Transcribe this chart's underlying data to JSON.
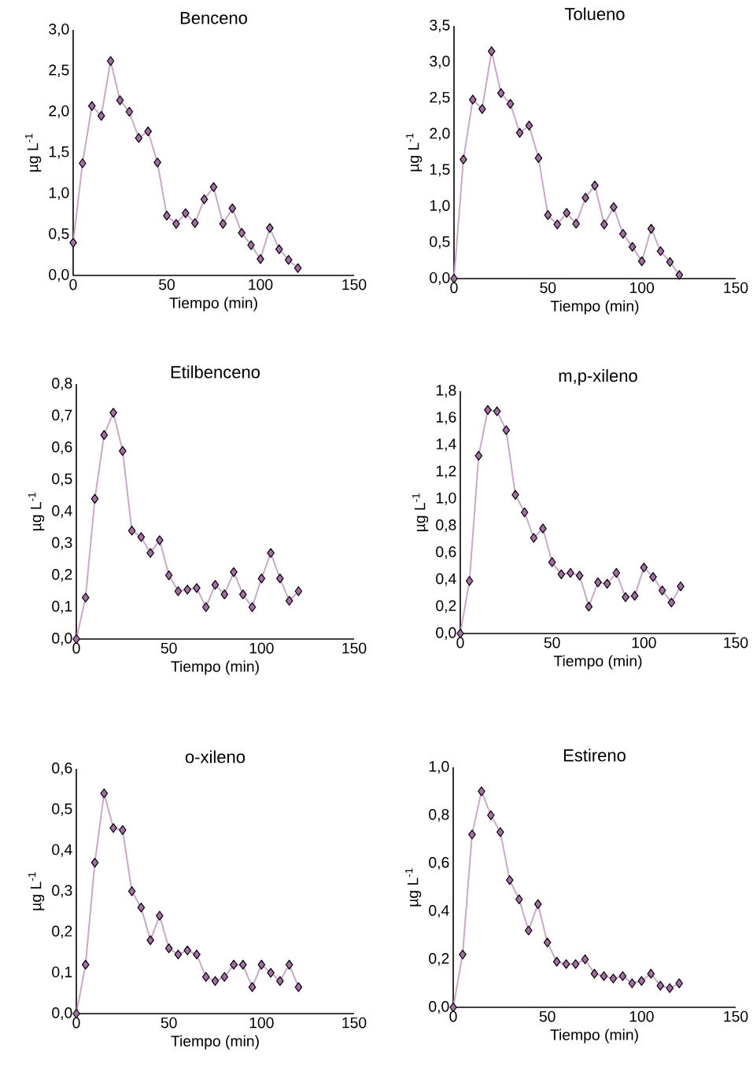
{
  "chart_data": [
    {
      "type": "line",
      "title": "Benceno",
      "xlabel": "Tiempo (min)",
      "ylabel": "µg L$^{-1}$",
      "marker": "diamond",
      "x": [
        0,
        5,
        10,
        15,
        20,
        25,
        30,
        35,
        40,
        45,
        50,
        55,
        60,
        65,
        70,
        75,
        80,
        85,
        90,
        95,
        100,
        105,
        110,
        115,
        120
      ],
      "series": [
        {
          "color": "#a56ea5",
          "values": [
            0.4,
            1.37,
            2.07,
            1.95,
            2.62,
            2.14,
            2.0,
            1.68,
            1.76,
            1.38,
            0.73,
            0.63,
            0.76,
            0.64,
            0.93,
            1.08,
            0.63,
            0.82,
            0.52,
            0.37,
            0.2,
            0.58,
            0.32,
            0.19,
            0.09
          ]
        }
      ],
      "xlim": [
        0,
        150
      ],
      "xticks": [
        0,
        50,
        100,
        150
      ],
      "ylim": [
        0,
        3
      ],
      "yticks": [
        {
          "value": 0,
          "label": "0,0"
        },
        {
          "value": 0.5,
          "label": "0,5"
        },
        {
          "value": 1,
          "label": "1,0"
        },
        {
          "value": 1.5,
          "label": "1,5"
        },
        {
          "value": 2,
          "label": "2,0"
        },
        {
          "value": 2.5,
          "label": "2,5"
        },
        {
          "value": 3,
          "label": "3,0"
        }
      ]
    },
    {
      "type": "line",
      "title": "Tolueno",
      "xlabel": "Tiempo (min)",
      "ylabel": "µg L$^{-1}$",
      "marker": "diamond",
      "x": [
        0,
        5,
        10,
        15,
        20,
        25,
        30,
        35,
        40,
        45,
        50,
        55,
        60,
        65,
        70,
        75,
        80,
        85,
        90,
        95,
        100,
        105,
        110,
        115,
        120
      ],
      "series": [
        {
          "color": "#a56ea5",
          "values": [
            0,
            1.65,
            2.48,
            2.35,
            3.15,
            2.57,
            2.42,
            2.02,
            2.12,
            1.67,
            0.88,
            0.75,
            0.91,
            0.76,
            1.12,
            1.29,
            0.75,
            0.99,
            0.62,
            0.44,
            0.24,
            0.69,
            0.38,
            0.23,
            0.05
          ]
        }
      ],
      "xlim": [
        0,
        150
      ],
      "xticks": [
        0,
        50,
        100,
        150
      ],
      "ylim": [
        0,
        3.5
      ],
      "yticks": [
        {
          "value": 0,
          "label": "0,0"
        },
        {
          "value": 0.5,
          "label": "0,5"
        },
        {
          "value": 1,
          "label": "1,0"
        },
        {
          "value": 1.5,
          "label": "1,5"
        },
        {
          "value": 2,
          "label": "2,0"
        },
        {
          "value": 2.5,
          "label": "2,5"
        },
        {
          "value": 3,
          "label": "3,0"
        },
        {
          "value": 3.5,
          "label": "3,5"
        }
      ]
    },
    {
      "type": "line",
      "title": "Etilbenceno",
      "xlabel": "Tiempo (min)",
      "ylabel": "µg L$^{-1}$",
      "marker": "diamond",
      "x": [
        0,
        5,
        10,
        15,
        20,
        25,
        30,
        35,
        40,
        45,
        50,
        55,
        60,
        65,
        70,
        75,
        80,
        85,
        90,
        95,
        100,
        105,
        110,
        115,
        120
      ],
      "series": [
        {
          "color": "#a56ea5",
          "values": [
            0,
            0.13,
            0.44,
            0.64,
            0.71,
            0.59,
            0.34,
            0.32,
            0.27,
            0.31,
            0.2,
            0.15,
            0.155,
            0.16,
            0.1,
            0.17,
            0.14,
            0.21,
            0.14,
            0.1,
            0.19,
            0.27,
            0.19,
            0.12,
            0.15
          ]
        }
      ],
      "xlim": [
        0,
        150
      ],
      "xticks": [
        0,
        50,
        100,
        150
      ],
      "ylim": [
        0,
        0.8
      ],
      "yticks": [
        {
          "value": 0,
          "label": "0,0"
        },
        {
          "value": 0.1,
          "label": "0,1"
        },
        {
          "value": 0.2,
          "label": "0,2"
        },
        {
          "value": 0.3,
          "label": "0,3"
        },
        {
          "value": 0.4,
          "label": "0,4"
        },
        {
          "value": 0.5,
          "label": "0,5"
        },
        {
          "value": 0.6,
          "label": "0,6"
        },
        {
          "value": 0.7,
          "label": "0,7"
        },
        {
          "value": 0.8,
          "label": "0,8"
        }
      ]
    },
    {
      "type": "line",
      "title": "m,p-xileno",
      "xlabel": "Tiempo (min)",
      "ylabel": "µg L$^{-1}$",
      "marker": "diamond",
      "x": [
        0,
        5,
        10,
        15,
        20,
        25,
        30,
        35,
        40,
        45,
        50,
        55,
        60,
        65,
        70,
        75,
        80,
        85,
        90,
        95,
        100,
        105,
        110,
        115,
        120
      ],
      "series": [
        {
          "color": "#a56ea5",
          "values": [
            0,
            0.39,
            1.32,
            1.66,
            1.65,
            1.51,
            1.03,
            0.9,
            0.71,
            0.78,
            0.53,
            0.44,
            0.45,
            0.43,
            0.2,
            0.38,
            0.37,
            0.45,
            0.27,
            0.28,
            0.49,
            0.42,
            0.32,
            0.23,
            0.35
          ]
        }
      ],
      "xlim": [
        0,
        150
      ],
      "xticks": [
        0,
        50,
        100,
        150
      ],
      "ylim": [
        0,
        1.8
      ],
      "yticks": [
        {
          "value": 0,
          "label": "0,0"
        },
        {
          "value": 0.2,
          "label": "0,2"
        },
        {
          "value": 0.4,
          "label": "0,4"
        },
        {
          "value": 0.6,
          "label": "0,6"
        },
        {
          "value": 0.8,
          "label": "0,8"
        },
        {
          "value": 1,
          "label": "1,0"
        },
        {
          "value": 1.2,
          "label": "1,2"
        },
        {
          "value": 1.4,
          "label": "1,4"
        },
        {
          "value": 1.6,
          "label": "1,6"
        },
        {
          "value": 1.8,
          "label": "1,8"
        }
      ]
    },
    {
      "type": "line",
      "title": "o-xileno",
      "xlabel": "Tiempo (min)",
      "ylabel": "µg L$^{-1}$",
      "marker": "diamond",
      "x": [
        0,
        5,
        10,
        15,
        20,
        25,
        30,
        35,
        40,
        45,
        50,
        55,
        60,
        65,
        70,
        75,
        80,
        85,
        90,
        95,
        100,
        105,
        110,
        115,
        120
      ],
      "series": [
        {
          "color": "#a56ea5",
          "values": [
            0,
            0.12,
            0.37,
            0.54,
            0.455,
            0.45,
            0.3,
            0.26,
            0.18,
            0.24,
            0.16,
            0.145,
            0.155,
            0.145,
            0.09,
            0.08,
            0.09,
            0.12,
            0.12,
            0.065,
            0.12,
            0.1,
            0.08,
            0.12,
            0.065
          ]
        }
      ],
      "xlim": [
        0,
        150
      ],
      "xticks": [
        0,
        50,
        100,
        150
      ],
      "ylim": [
        0,
        0.6
      ],
      "yticks": [
        {
          "value": 0,
          "label": "0,0"
        },
        {
          "value": 0.1,
          "label": "0,1"
        },
        {
          "value": 0.2,
          "label": "0,2"
        },
        {
          "value": 0.3,
          "label": "0,3"
        },
        {
          "value": 0.4,
          "label": "0,4"
        },
        {
          "value": 0.5,
          "label": "0,5"
        },
        {
          "value": 0.6,
          "label": "0,6"
        }
      ]
    },
    {
      "type": "line",
      "title": "Estireno",
      "xlabel": "Tiempo (min)",
      "ylabel": "µg L$^{-1}$",
      "marker": "diamond",
      "x": [
        0,
        5,
        10,
        15,
        20,
        25,
        30,
        35,
        40,
        45,
        50,
        55,
        60,
        65,
        70,
        75,
        80,
        85,
        90,
        95,
        100,
        105,
        110,
        115,
        120
      ],
      "series": [
        {
          "color": "#a56ea5",
          "values": [
            0,
            0.22,
            0.72,
            0.9,
            0.8,
            0.73,
            0.53,
            0.45,
            0.32,
            0.43,
            0.27,
            0.19,
            0.18,
            0.18,
            0.2,
            0.14,
            0.13,
            0.12,
            0.13,
            0.1,
            0.11,
            0.14,
            0.09,
            0.08,
            0.1
          ]
        }
      ],
      "xlim": [
        0,
        150
      ],
      "xticks": [
        0,
        50,
        100,
        150
      ],
      "ylim": [
        0,
        1
      ],
      "yticks": [
        {
          "value": 0,
          "label": "0,0"
        },
        {
          "value": 0.2,
          "label": "0,2"
        },
        {
          "value": 0.4,
          "label": "0,4"
        },
        {
          "value": 0.6,
          "label": "0,6"
        },
        {
          "value": 0.8,
          "label": "0,8"
        },
        {
          "value": 1,
          "label": "1,0"
        }
      ]
    }
  ]
}
